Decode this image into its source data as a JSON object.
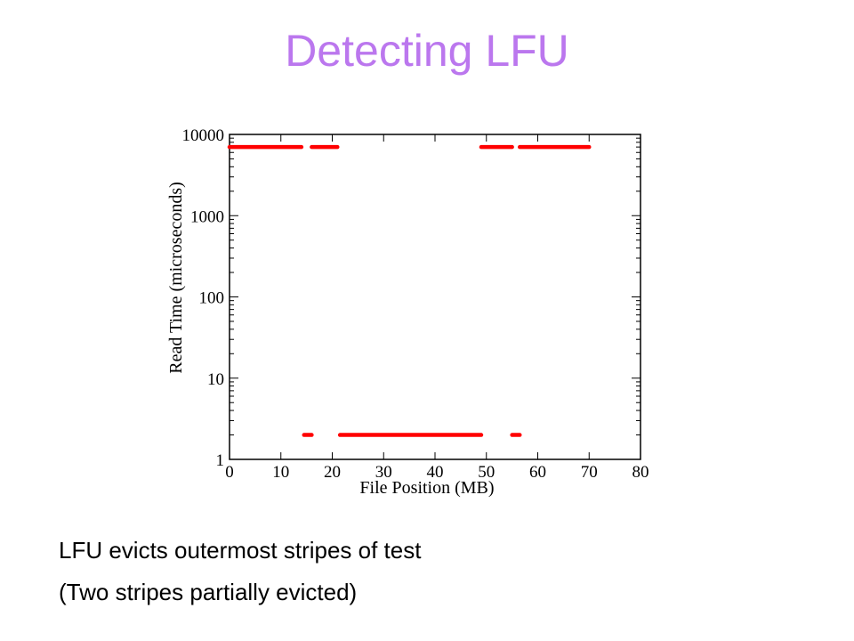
{
  "slide": {
    "title": "Detecting LFU",
    "captions": [
      "LFU evicts outermost stripes of test",
      "(Two stripes partially evicted)"
    ]
  },
  "colors": {
    "title": "#bb77ee",
    "data": "#ff0000",
    "axis": "#000000"
  },
  "chart_data": {
    "type": "scatter",
    "title": "",
    "xlabel": "File Position (MB)",
    "ylabel": "Read Time (microseconds)",
    "xlim": [
      0,
      80
    ],
    "ylim": [
      1,
      10000
    ],
    "yscale": "log",
    "x_ticks": [
      "0",
      "10",
      "20",
      "30",
      "40",
      "50",
      "60",
      "70",
      "80"
    ],
    "y_ticks": [
      "1",
      "10",
      "100",
      "1000",
      "10000"
    ],
    "grid": false,
    "legend": "none",
    "series": [
      {
        "segments": [
          {
            "x_start": 0,
            "x_end": 14,
            "y": 7000
          },
          {
            "x_start": 14.5,
            "x_end": 16,
            "y": 2
          },
          {
            "x_start": 16,
            "x_end": 21,
            "y": 7000
          },
          {
            "x_start": 21.5,
            "x_end": 49,
            "y": 2
          },
          {
            "x_start": 49,
            "x_end": 55,
            "y": 7000
          },
          {
            "x_start": 55,
            "x_end": 56.5,
            "y": 2
          },
          {
            "x_start": 56.5,
            "x_end": 70,
            "y": 7000
          }
        ]
      }
    ]
  }
}
